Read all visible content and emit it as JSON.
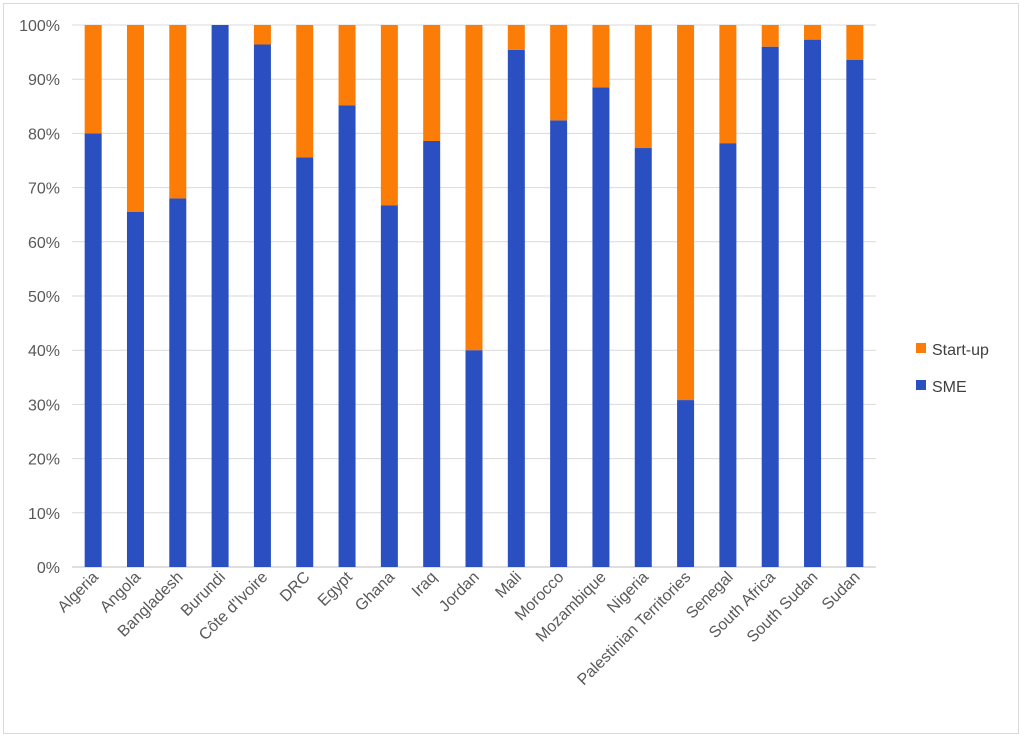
{
  "colors": {
    "sme": "#2a4fc1",
    "startup": "#fb7d07",
    "grid": "#d9d9d9",
    "axis": "#bfbfbf"
  },
  "chart_data": {
    "type": "bar",
    "stacked": true,
    "percent": true,
    "categories": [
      "Algeria",
      "Angola",
      "Bangladesh",
      "Burundi",
      "Côte d'Ivoire",
      "DRC",
      "Egypt",
      "Ghana",
      "Iraq",
      "Jordan",
      "Mali",
      "Morocco",
      "Mozambique",
      "Nigeria",
      "Palestinian Territories",
      "Senegal",
      "South Africa",
      "South Sudan",
      "Sudan"
    ],
    "series": [
      {
        "name": "SME",
        "values": [
          80,
          65.5,
          68,
          100,
          96.4,
          75.6,
          85.2,
          66.7,
          78.6,
          40,
          95.4,
          82.4,
          88.5,
          77.3,
          30.8,
          78.2,
          96,
          97.3,
          93.6
        ]
      },
      {
        "name": "Start-up",
        "values": [
          20,
          34.5,
          32,
          0,
          3.6,
          24.4,
          14.8,
          33.3,
          21.4,
          60,
          4.6,
          17.6,
          11.5,
          22.7,
          69.2,
          21.8,
          4,
          2.7,
          6.4
        ]
      }
    ],
    "yticks": [
      "0%",
      "10%",
      "20%",
      "30%",
      "40%",
      "50%",
      "60%",
      "70%",
      "80%",
      "90%",
      "100%"
    ],
    "ylim": [
      0,
      100
    ],
    "grid": true,
    "legend_position": "right",
    "legend": [
      "Start-up",
      "SME"
    ]
  }
}
